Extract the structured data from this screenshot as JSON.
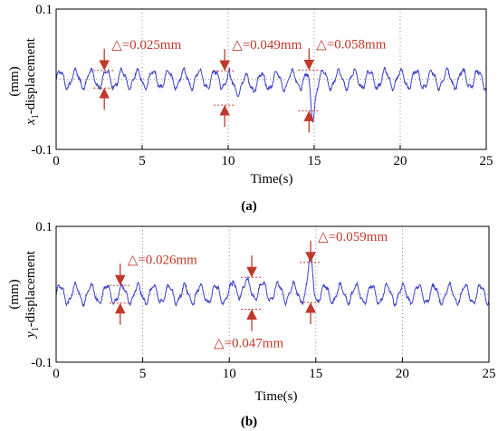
{
  "chart_data": [
    {
      "type": "line",
      "caption": "(a)",
      "ylabel_var": "x",
      "ylabel_sub": "1",
      "ylabel_rest": "-displacement",
      "ylabel_unit": "(mm)",
      "xlabel": "Time(s)",
      "xlim": [
        0,
        25
      ],
      "ylim": [
        -0.1,
        0.1
      ],
      "xticks": [
        "0",
        "5",
        "10",
        "15",
        "20",
        "25"
      ],
      "yticks": [
        "0.1",
        "-0.1"
      ],
      "ytick_values": [
        0.1,
        -0.1
      ],
      "grid": "dotted",
      "line_color": "#3b43c8",
      "annotation_color": "#c0392b",
      "signal": {
        "baseline": 0.0,
        "amplitude": 0.0125,
        "period_s": 0.9,
        "events": [
          {
            "t": 10.1,
            "kind": "step",
            "offset": -0.012,
            "decay_s": 1.6
          },
          {
            "t": 14.9,
            "kind": "dip",
            "depth": -0.05,
            "width_s": 0.35
          }
        ]
      },
      "annotations": [
        {
          "label": "△=0.025mm",
          "time": 2.8,
          "upper": 0.0125,
          "lower": -0.0125
        },
        {
          "label": "△=0.049mm",
          "time": 9.8,
          "upper": 0.012,
          "lower": -0.037
        },
        {
          "label": "△=0.058mm",
          "time": 14.7,
          "upper": 0.013,
          "lower": -0.045
        }
      ]
    },
    {
      "type": "line",
      "caption": "(b)",
      "ylabel_var": "y",
      "ylabel_sub": "1",
      "ylabel_rest": "-displacement",
      "ylabel_unit": "(mm)",
      "xlabel": "Time(s)",
      "xlim": [
        0,
        25
      ],
      "ylim": [
        -0.1,
        0.1
      ],
      "xticks": [
        "0",
        "5",
        "10",
        "15",
        "20",
        "25"
      ],
      "yticks": [
        "0.1",
        "-0.1"
      ],
      "ytick_values": [
        0.1,
        -0.1
      ],
      "grid": "dotted",
      "line_color": "#3b43c8",
      "annotation_color": "#c0392b",
      "signal": {
        "baseline": 0.0,
        "amplitude": 0.013,
        "period_s": 0.9,
        "events": [
          {
            "t": 10.2,
            "kind": "step",
            "offset": 0.012,
            "decay_s": 1.8
          },
          {
            "t": 14.7,
            "kind": "spike",
            "depth": 0.045,
            "width_s": 0.35
          }
        ]
      },
      "annotations": [
        {
          "label": "△=0.026mm",
          "time": 3.7,
          "upper": 0.013,
          "lower": -0.013
        },
        {
          "label": "△=0.047mm",
          "time": 11.3,
          "upper": 0.025,
          "lower": -0.022
        },
        {
          "label": "△=0.059mm",
          "time": 14.7,
          "upper": 0.047,
          "lower": -0.012
        }
      ]
    }
  ]
}
